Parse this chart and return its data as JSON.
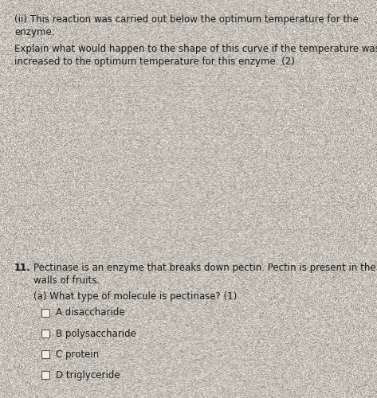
{
  "bg_color": "#e8e0d0",
  "title_ii_line1": "(ii) This reaction was carried out below the optimum temperature for the",
  "title_ii_line2": "enzyme.",
  "question_line1": "Explain what would happen to the shape of this curve if the temperature was",
  "question_line2": "increased to the optimum temperature for this enzyme. (2)",
  "num_answer_lines": 7,
  "q11_label": "11.",
  "q11_text1": "Pectinase is an enzyme that breaks down pectin. Pectin is present in the cell",
  "q11_text2": "walls of fruits.",
  "qa_text": "(a) What type of molecule is pectinase? (1)",
  "options": [
    "A disaccharide",
    "B polysaccharide",
    "C protein",
    "D triglyceride"
  ],
  "text_color": "#1a1a1a",
  "line_color": "#999999",
  "font_size_body": 8.5
}
